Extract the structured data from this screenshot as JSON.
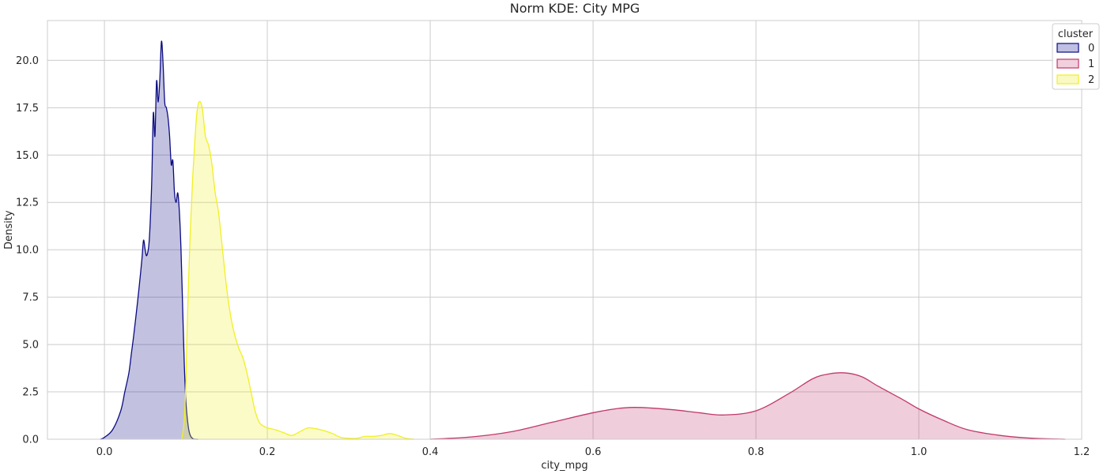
{
  "chart_data": {
    "type": "area",
    "title": "Norm KDE: City MPG",
    "xlabel": "city_mpg",
    "ylabel": "Density",
    "xlim": [
      -0.07,
      1.2
    ],
    "ylim": [
      0,
      22.1
    ],
    "xticks": [
      0.0,
      0.2,
      0.4,
      0.6,
      0.8,
      1.0,
      1.2
    ],
    "xtick_labels": [
      "0.0",
      "0.2",
      "0.4",
      "0.6",
      "0.8",
      "1.0",
      "1.2"
    ],
    "yticks": [
      0.0,
      2.5,
      5.0,
      7.5,
      10.0,
      12.5,
      15.0,
      17.5,
      20.0
    ],
    "ytick_labels": [
      "0.0",
      "2.5",
      "5.0",
      "7.5",
      "10.0",
      "12.5",
      "15.0",
      "17.5",
      "20.0"
    ],
    "grid": true,
    "legend": {
      "title": "cluster",
      "position": "top-right"
    },
    "series": [
      {
        "name": "0",
        "line_color": "#0b0b82",
        "fill_color": "#bfbfe3",
        "x": [
          -0.005,
          0.0,
          0.01,
          0.02,
          0.025,
          0.03,
          0.033,
          0.036,
          0.04,
          0.043,
          0.046,
          0.048,
          0.05,
          0.052,
          0.055,
          0.058,
          0.06,
          0.062,
          0.064,
          0.066,
          0.068,
          0.07,
          0.072,
          0.074,
          0.076,
          0.078,
          0.08,
          0.082,
          0.084,
          0.086,
          0.088,
          0.09,
          0.092,
          0.094,
          0.096,
          0.098,
          0.1,
          0.102,
          0.104,
          0.106,
          0.108,
          0.11,
          0.115
        ],
        "y": [
          0.0,
          0.1,
          0.5,
          1.5,
          2.5,
          3.5,
          4.5,
          5.5,
          7.0,
          8.2,
          9.5,
          10.5,
          10.0,
          9.7,
          10.5,
          13.5,
          17.2,
          16.0,
          18.9,
          17.8,
          19.0,
          21.0,
          19.8,
          17.8,
          17.5,
          17.0,
          16.0,
          14.5,
          14.7,
          13.0,
          12.5,
          13.0,
          12.0,
          10.0,
          7.0,
          4.0,
          2.0,
          1.0,
          0.4,
          0.15,
          0.05,
          0.01,
          0.0
        ]
      },
      {
        "name": "1",
        "line_color": "#c0396b",
        "fill_color": "#f2cfdc",
        "x": [
          0.4,
          0.45,
          0.5,
          0.55,
          0.6,
          0.63,
          0.65,
          0.67,
          0.7,
          0.73,
          0.76,
          0.8,
          0.84,
          0.87,
          0.89,
          0.91,
          0.93,
          0.95,
          0.98,
          1.0,
          1.03,
          1.06,
          1.1,
          1.14,
          1.18
        ],
        "y": [
          0.0,
          0.12,
          0.4,
          0.9,
          1.4,
          1.62,
          1.68,
          1.65,
          1.55,
          1.4,
          1.28,
          1.5,
          2.4,
          3.2,
          3.45,
          3.5,
          3.3,
          2.8,
          2.1,
          1.6,
          1.0,
          0.5,
          0.2,
          0.05,
          0.0
        ]
      },
      {
        "name": "2",
        "line_color": "#f0f022",
        "fill_color": "#f9f9c2",
        "x": [
          0.095,
          0.098,
          0.1,
          0.102,
          0.105,
          0.108,
          0.11,
          0.113,
          0.116,
          0.12,
          0.124,
          0.128,
          0.132,
          0.136,
          0.14,
          0.145,
          0.15,
          0.155,
          0.16,
          0.165,
          0.17,
          0.175,
          0.18,
          0.185,
          0.19,
          0.195,
          0.2,
          0.21,
          0.22,
          0.23,
          0.24,
          0.25,
          0.26,
          0.27,
          0.28,
          0.29,
          0.3,
          0.31,
          0.32,
          0.33,
          0.34,
          0.35,
          0.36,
          0.37,
          0.38
        ],
        "y": [
          0.0,
          1.0,
          3.0,
          6.5,
          10.5,
          13.5,
          15.0,
          17.0,
          17.8,
          17.5,
          16.0,
          15.5,
          14.5,
          13.0,
          12.0,
          10.0,
          8.0,
          6.5,
          5.5,
          4.8,
          4.3,
          3.5,
          2.5,
          1.5,
          0.9,
          0.7,
          0.6,
          0.5,
          0.35,
          0.2,
          0.4,
          0.6,
          0.55,
          0.45,
          0.3,
          0.1,
          0.05,
          0.05,
          0.15,
          0.15,
          0.2,
          0.3,
          0.2,
          0.05,
          0.0
        ]
      }
    ]
  }
}
